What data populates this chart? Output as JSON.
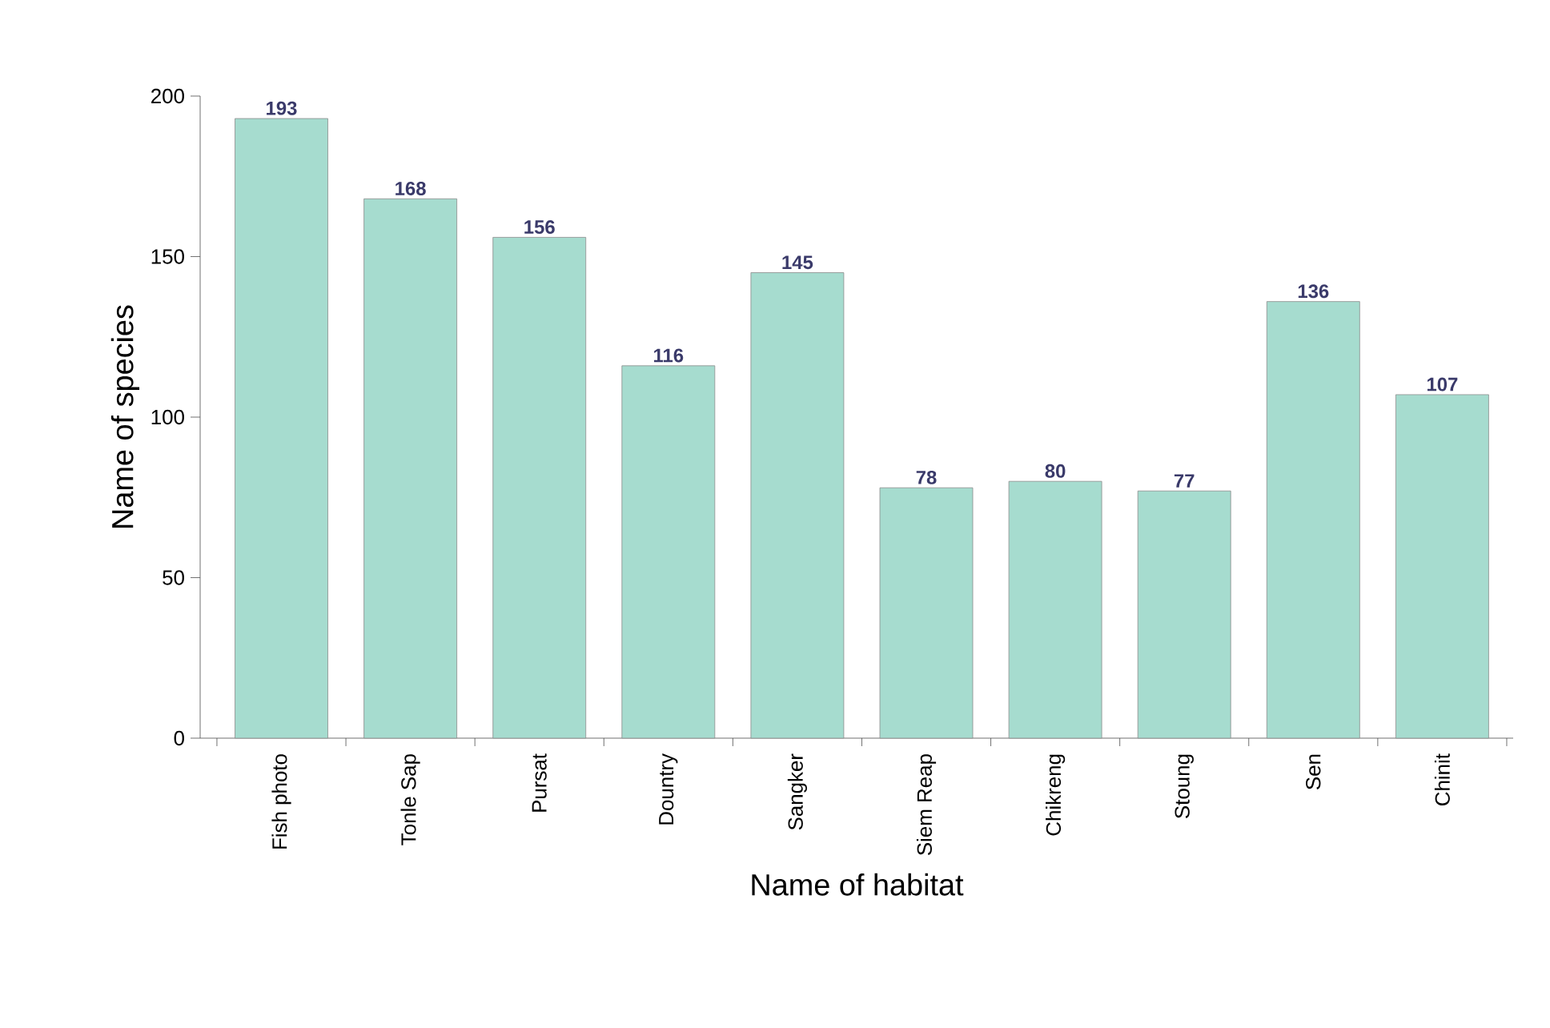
{
  "chart_data": {
    "type": "bar",
    "xlabel": "Name of habitat",
    "ylabel": "Name of species",
    "categories": [
      "Fish photo",
      "Tonle Sap",
      "Pursat",
      "Dountry",
      "Sangker",
      "Siem Reap",
      "Chikreng",
      "Stoung",
      "Sen",
      "Chinit"
    ],
    "values": [
      193,
      168,
      156,
      116,
      145,
      78,
      80,
      77,
      136,
      107
    ],
    "color": "#a6dccf",
    "ylim": [
      0,
      200
    ],
    "yticks": [
      0,
      50,
      100,
      150,
      200
    ],
    "data_labels": true
  }
}
